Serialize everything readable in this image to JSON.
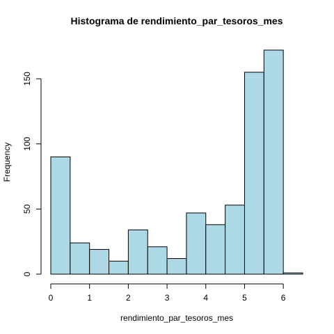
{
  "chart_data": {
    "type": "bar",
    "title": "Histograma de rendimiento_par_tesoros_mes",
    "xlabel": "rendimiento_par_tesoros_mes",
    "ylabel": "Frequency",
    "bar_color": "#add8e6",
    "xlim": [
      0,
      6.5
    ],
    "ylim": [
      0,
      172
    ],
    "x_ticks": [
      0,
      1,
      2,
      3,
      4,
      5,
      6
    ],
    "y_ticks": [
      0,
      50,
      100,
      150
    ],
    "bins": [
      {
        "start": 0.0,
        "end": 0.5,
        "count": 90
      },
      {
        "start": 0.5,
        "end": 1.0,
        "count": 24
      },
      {
        "start": 1.0,
        "end": 1.5,
        "count": 19
      },
      {
        "start": 1.5,
        "end": 2.0,
        "count": 10
      },
      {
        "start": 2.0,
        "end": 2.5,
        "count": 34
      },
      {
        "start": 2.5,
        "end": 3.0,
        "count": 21
      },
      {
        "start": 3.0,
        "end": 3.5,
        "count": 12
      },
      {
        "start": 3.5,
        "end": 4.0,
        "count": 47
      },
      {
        "start": 4.0,
        "end": 4.5,
        "count": 38
      },
      {
        "start": 4.5,
        "end": 5.0,
        "count": 53
      },
      {
        "start": 5.0,
        "end": 5.5,
        "count": 155
      },
      {
        "start": 5.5,
        "end": 6.0,
        "count": 172
      },
      {
        "start": 6.0,
        "end": 6.5,
        "count": 1
      }
    ]
  }
}
